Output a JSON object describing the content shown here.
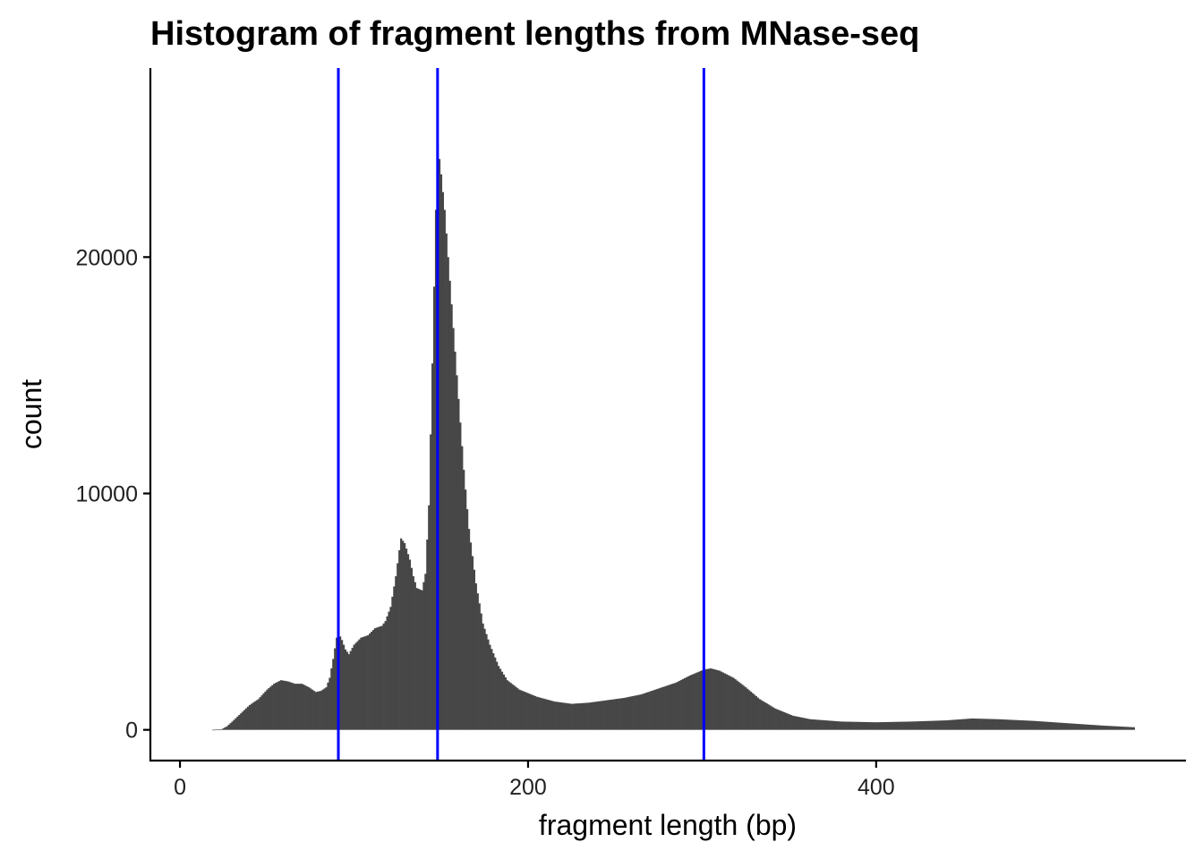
{
  "chart_data": {
    "type": "bar",
    "title": "Histogram of fragment lengths from MNase-seq",
    "xlabel": "fragment length (bp)",
    "ylabel": "count",
    "xlim": [
      -17,
      578
    ],
    "ylim": [
      -1300,
      28000
    ],
    "x_ticks": [
      0,
      200,
      400
    ],
    "y_ticks": [
      0,
      10000,
      20000
    ],
    "bar_color": "#474747",
    "vline_color": "#0000ff",
    "vlines": [
      91,
      148,
      301
    ],
    "grid": false,
    "legend": "none",
    "bins": {
      "start": 19,
      "end": 548,
      "step": 1,
      "anchors": [
        [
          19,
          0
        ],
        [
          24,
          30
        ],
        [
          27,
          150
        ],
        [
          30,
          350
        ],
        [
          35,
          700
        ],
        [
          40,
          1050
        ],
        [
          45,
          1300
        ],
        [
          50,
          1700
        ],
        [
          54,
          1950
        ],
        [
          58,
          2100
        ],
        [
          62,
          2050
        ],
        [
          66,
          1950
        ],
        [
          70,
          1950
        ],
        [
          74,
          1800
        ],
        [
          78,
          1600
        ],
        [
          81,
          1650
        ],
        [
          84,
          1800
        ],
        [
          86,
          2200
        ],
        [
          88,
          3000
        ],
        [
          90,
          3900
        ],
        [
          91,
          4100
        ],
        [
          93,
          3800
        ],
        [
          95,
          3400
        ],
        [
          97,
          3200
        ],
        [
          100,
          3600
        ],
        [
          104,
          3900
        ],
        [
          108,
          4000
        ],
        [
          112,
          4300
        ],
        [
          116,
          4400
        ],
        [
          118,
          4600
        ],
        [
          121,
          5200
        ],
        [
          124,
          6500
        ],
        [
          126,
          7600
        ],
        [
          127,
          8100
        ],
        [
          129,
          7900
        ],
        [
          132,
          7200
        ],
        [
          134,
          6500
        ],
        [
          136,
          6000
        ],
        [
          139,
          5900
        ],
        [
          141,
          6600
        ],
        [
          143,
          9500
        ],
        [
          145,
          15500
        ],
        [
          147,
          22000
        ],
        [
          148,
          24800
        ],
        [
          150,
          23500
        ],
        [
          152,
          22000
        ],
        [
          154,
          20000
        ],
        [
          157,
          17000
        ],
        [
          160,
          14000
        ],
        [
          163,
          11000
        ],
        [
          166,
          8500
        ],
        [
          170,
          6200
        ],
        [
          174,
          4500
        ],
        [
          178,
          3600
        ],
        [
          183,
          2700
        ],
        [
          188,
          2100
        ],
        [
          195,
          1700
        ],
        [
          205,
          1400
        ],
        [
          215,
          1200
        ],
        [
          225,
          1100
        ],
        [
          235,
          1150
        ],
        [
          245,
          1250
        ],
        [
          255,
          1350
        ],
        [
          265,
          1500
        ],
        [
          275,
          1750
        ],
        [
          285,
          2000
        ],
        [
          293,
          2300
        ],
        [
          301,
          2550
        ],
        [
          305,
          2600
        ],
        [
          310,
          2500
        ],
        [
          318,
          2200
        ],
        [
          325,
          1800
        ],
        [
          333,
          1300
        ],
        [
          342,
          900
        ],
        [
          352,
          600
        ],
        [
          362,
          450
        ],
        [
          380,
          350
        ],
        [
          400,
          320
        ],
        [
          420,
          350
        ],
        [
          440,
          400
        ],
        [
          455,
          480
        ],
        [
          470,
          450
        ],
        [
          490,
          380
        ],
        [
          510,
          280
        ],
        [
          530,
          180
        ],
        [
          548,
          110
        ]
      ]
    }
  }
}
